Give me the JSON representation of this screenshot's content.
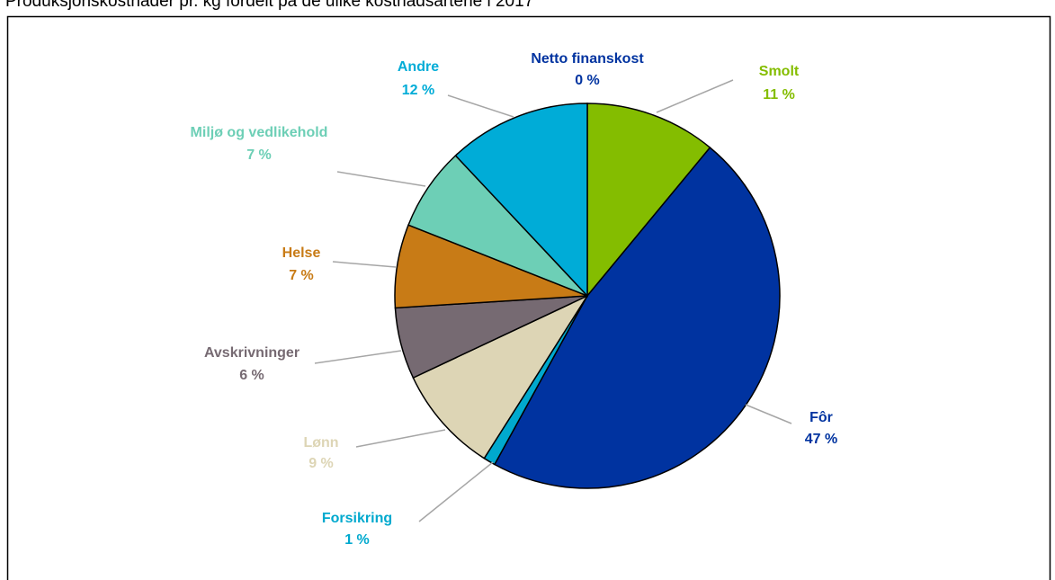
{
  "chart_data": {
    "type": "pie",
    "title": "Produksjonskostnader pr. kg fordelt på de ulike kostnadsartene i 2017",
    "categories": [
      "Netto finanskost",
      "Smolt",
      "Fôr",
      "Forsikring",
      "Lønn",
      "Avskrivninger",
      "Helse",
      "Miljø og vedlikehold",
      "Andre"
    ],
    "values": [
      0,
      11,
      47,
      1,
      9,
      6,
      7,
      7,
      12
    ],
    "value_labels": [
      "0 %",
      "11 %",
      "47 %",
      "1 %",
      "9 %",
      "6 %",
      "7 %",
      "7 %",
      "12 %"
    ],
    "colors": [
      "#0033a0",
      "#84bd00",
      "#0033a0",
      "#00a9ce",
      "#ddd5b5",
      "#766a72",
      "#c87b16",
      "#6dcfb6",
      "#00acd7"
    ]
  }
}
